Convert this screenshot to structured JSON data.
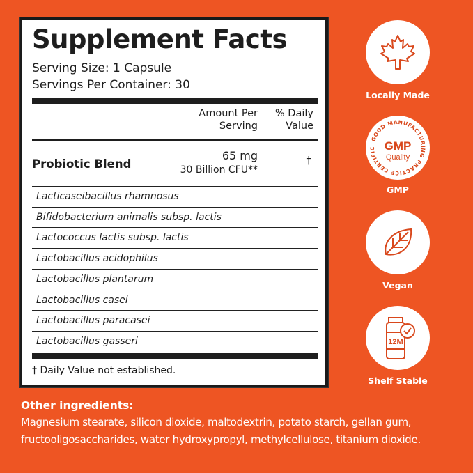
{
  "facts": {
    "title": "Supplement Facts",
    "serving_size": "Serving Size: 1 Capsule",
    "servings_per_container": "Servings Per Container: 30",
    "col_amount": [
      "Amount Per",
      "Serving"
    ],
    "col_daily": [
      "% Daily",
      "Value"
    ],
    "blend_name": "Probiotic Blend",
    "blend_amount": "65 mg",
    "blend_cfu": "30 Billion CFU**",
    "blend_dv": "†",
    "strains": [
      "Lacticaseibacillus rhamnosus",
      "Bifidobacterium animalis subsp. lactis",
      "Lactococcus lactis subsp. lactis",
      "Lactobacillus acidophilus",
      "Lactobacillus plantarum",
      "Lactobacillus casei",
      "Lactobacillus paracasei",
      "Lactobacillus gasseri"
    ],
    "footnote": "† Daily Value not established."
  },
  "badges": [
    {
      "icon": "maple-leaf-icon",
      "label": "Locally Made"
    },
    {
      "icon": "gmp-seal-icon",
      "label": "GMP",
      "seal_text": "GOOD MANUFACTURING PRACTICE CERTIFICATION",
      "seal_main": "GMP",
      "seal_sub": "Quality"
    },
    {
      "icon": "leaf-icon",
      "label": "Vegan"
    },
    {
      "icon": "bottle-check-icon",
      "label": "Shelf Stable",
      "bottle_text": "12M"
    }
  ],
  "other_ingredients": {
    "heading": "Other ingredients:",
    "line1": "Magnesium stearate, silicon dioxide, maltodextrin, potato starch, gellan gum,",
    "line2": "fructooligosaccharides, water hydroxypropyl, methylcellulose, titanium dioxide."
  },
  "colors": {
    "background": "#ee5523",
    "text": "#1e1e1e",
    "icon": "#d9481c"
  }
}
